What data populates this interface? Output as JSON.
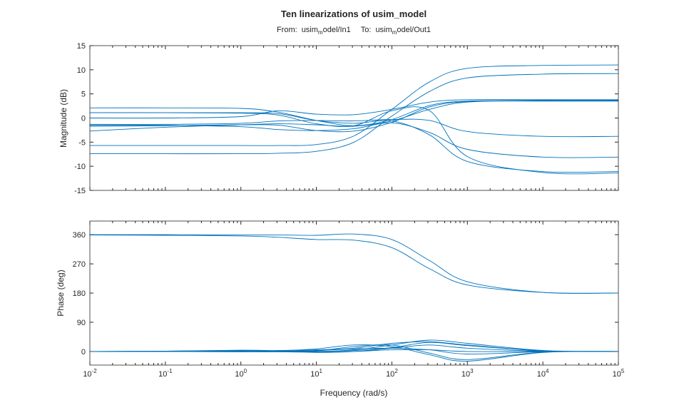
{
  "chart_data": {
    "type": "line",
    "title": "Ten linearizations of usim_model",
    "subtitle": {
      "from_label": "From:",
      "from_pre": "usim",
      "from_sub": "m",
      "from_post": "odel/In1",
      "to_label": "To:",
      "to_pre": "usim",
      "to_sub": "m",
      "to_post": "odel/Out1"
    },
    "xlabel": "Frequency (rad/s)",
    "xscale": "log",
    "xlim": [
      0.01,
      100000
    ],
    "x_tick_exponents": [
      "-2",
      "-1",
      "0",
      "1",
      "2",
      "3",
      "4",
      "5"
    ],
    "x_tick_base": "10",
    "line_color": "#0072BD",
    "freq": [
      0.01,
      0.1,
      1,
      3.16,
      10,
      31.6,
      100,
      316,
      1000,
      10000,
      100000
    ],
    "magnitude": {
      "ylabel": "Magnitude (dB)",
      "ylim": [
        -15,
        15
      ],
      "yticks": [
        "-15",
        "-10",
        "-5",
        "0",
        "5",
        "10",
        "15"
      ],
      "series": [
        [
          2.1,
          2.1,
          2.0,
          1.2,
          -0.5,
          -1.6,
          -0.3,
          2.6,
          3.5,
          3.6,
          3.6
        ],
        [
          1.1,
          1.1,
          1.0,
          0.6,
          -1.2,
          -1.6,
          1.5,
          1.5,
          -8,
          -11.3,
          -11.4
        ],
        [
          0,
          0,
          0.3,
          1.5,
          0.8,
          0.7,
          1.8,
          3.3,
          3.8,
          3.8,
          3.8
        ],
        [
          1.1,
          1.1,
          1.1,
          0.9,
          -0.5,
          -1.1,
          -0.6,
          -3.5,
          -9,
          -11.1,
          -11.1
        ],
        [
          -1.3,
          -1.3,
          -1.1,
          -0.6,
          -0.5,
          -0.6,
          -0.3,
          -0.5,
          -2.8,
          -3.8,
          -3.8
        ],
        [
          -1.5,
          -1.5,
          -1.8,
          -2.4,
          -2.6,
          -2.2,
          -1.0,
          -3,
          -6.5,
          -8.1,
          -8.1
        ],
        [
          -1.7,
          -1.6,
          -1.4,
          -1.5,
          -2.6,
          -2.7,
          -0.9,
          2.3,
          3.4,
          3.5,
          3.5
        ],
        [
          -2.7,
          -1.9,
          -1.4,
          -1.2,
          -1.4,
          -1.7,
          -0.6,
          1.8,
          3.3,
          3.7,
          3.7
        ],
        [
          -5.7,
          -5.7,
          -5.7,
          -5.7,
          -5.5,
          -3.7,
          1.8,
          7.5,
          10.3,
          10.9,
          11
        ],
        [
          -7.4,
          -7.4,
          -7.4,
          -7.3,
          -6.9,
          -5.0,
          0.4,
          5.5,
          8.3,
          9.1,
          9.2
        ]
      ]
    },
    "phase": {
      "ylabel": "Phase (deg)",
      "ylim": [
        -42,
        402
      ],
      "yticks": [
        "0",
        "90",
        "180",
        "270",
        "360"
      ],
      "series": [
        [
          360,
          360,
          359,
          359,
          358,
          362,
          345,
          280,
          215,
          182,
          180
        ],
        [
          359,
          358,
          356,
          352,
          345,
          343,
          320,
          255,
          205,
          182,
          180
        ],
        [
          0,
          0,
          1,
          3,
          5,
          10,
          25,
          30,
          20,
          2,
          0
        ],
        [
          0,
          0,
          -1,
          2,
          8,
          20,
          15,
          -10,
          -30,
          -3,
          0
        ],
        [
          0,
          1,
          2,
          1,
          0,
          5,
          20,
          35,
          25,
          3,
          0
        ],
        [
          0,
          0,
          0,
          -1,
          -2,
          0,
          5,
          5,
          0,
          0,
          0
        ],
        [
          0,
          0,
          1,
          0,
          2,
          15,
          20,
          -5,
          -25,
          -2,
          0
        ],
        [
          0,
          0,
          0,
          1,
          3,
          8,
          10,
          5,
          -8,
          -1,
          0
        ],
        [
          0,
          1,
          4,
          2,
          -3,
          0,
          10,
          20,
          10,
          1,
          0
        ],
        [
          0,
          0,
          -1,
          -1,
          0,
          3,
          12,
          28,
          18,
          2,
          0
        ]
      ]
    }
  }
}
